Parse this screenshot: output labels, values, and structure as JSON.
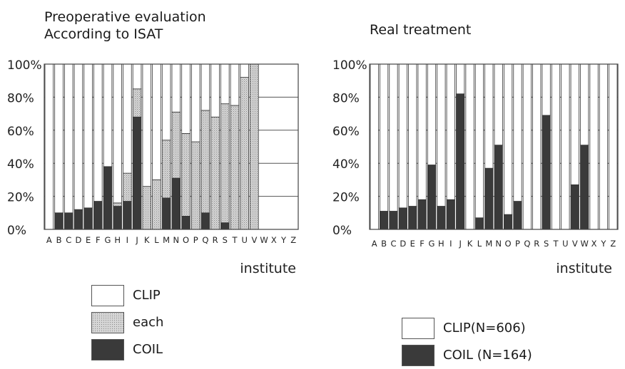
{
  "charts_header": {
    "left_title_line1": "Preoperative evaluation",
    "left_title_line2": "According to ISAT",
    "right_title": "Real treatment"
  },
  "legend_left": [
    {
      "label": "CLIP",
      "color": "#ffffff",
      "pattern": "plain"
    },
    {
      "label": "each",
      "color": "#c9c9c9",
      "pattern": "dotted"
    },
    {
      "label": "COIL",
      "color": "#3a3a3a",
      "pattern": "solid"
    }
  ],
  "legend_right": [
    {
      "label": "CLIP(N=606)",
      "color": "#ffffff",
      "pattern": "plain"
    },
    {
      "label": "COIL (N=164)",
      "color": "#3a3a3a",
      "pattern": "solid"
    }
  ],
  "chart_data": [
    {
      "type": "bar",
      "stacked": true,
      "title": "Preoperative evaluation According to ISAT",
      "xlabel": "institute",
      "ylabel": "",
      "ylim": [
        0,
        100
      ],
      "yticks": [
        "0%",
        "20%",
        "40%",
        "60%",
        "80%",
        "100%"
      ],
      "categories": [
        "A",
        "B",
        "C",
        "D",
        "E",
        "F",
        "G",
        "H",
        "I",
        "J",
        "K",
        "L",
        "M",
        "N",
        "O",
        "P",
        "Q",
        "R",
        "S",
        "T",
        "U",
        "V",
        "W",
        "X",
        "Y",
        "Z"
      ],
      "series": [
        {
          "name": "COIL",
          "color": "#3a3a3a",
          "values": [
            0,
            10,
            10,
            12,
            13,
            17,
            38,
            14,
            17,
            68,
            0,
            0,
            19,
            31,
            8,
            0,
            10,
            0,
            4,
            0,
            0,
            0,
            0,
            0,
            0,
            0
          ]
        },
        {
          "name": "each",
          "color": "#c9c9c9",
          "values": [
            0,
            0,
            0,
            0,
            0,
            0,
            0,
            2,
            17,
            17,
            26,
            30,
            35,
            40,
            50,
            53,
            62,
            68,
            72,
            75,
            92,
            100,
            0,
            0,
            0,
            0
          ]
        },
        {
          "name": "CLIP",
          "color": "#ffffff",
          "values": [
            100,
            90,
            90,
            88,
            87,
            83,
            62,
            84,
            66,
            15,
            74,
            70,
            46,
            29,
            42,
            47,
            28,
            32,
            24,
            25,
            8,
            0,
            0,
            0,
            0,
            0
          ]
        }
      ]
    },
    {
      "type": "bar",
      "stacked": true,
      "title": "Real treatment",
      "xlabel": "institute",
      "ylabel": "",
      "ylim": [
        0,
        100
      ],
      "yticks": [
        "0%",
        "20%",
        "40%",
        "60%",
        "80%",
        "100%"
      ],
      "categories": [
        "A",
        "B",
        "C",
        "D",
        "E",
        "F",
        "G",
        "H",
        "I",
        "J",
        "K",
        "L",
        "M",
        "N",
        "O",
        "P",
        "Q",
        "R",
        "S",
        "T",
        "U",
        "V",
        "W",
        "X",
        "Y",
        "Z"
      ],
      "series": [
        {
          "name": "COIL",
          "color": "#3a3a3a",
          "values": [
            0,
            11,
            11,
            13,
            14,
            18,
            39,
            14,
            18,
            82,
            0,
            7,
            37,
            51,
            9,
            17,
            0,
            0,
            69,
            0,
            0,
            27,
            51,
            0,
            0,
            0
          ]
        },
        {
          "name": "CLIP",
          "color": "#ffffff",
          "values": [
            100,
            89,
            89,
            87,
            86,
            82,
            61,
            86,
            82,
            18,
            100,
            93,
            63,
            49,
            91,
            83,
            100,
            100,
            31,
            100,
            100,
            73,
            49,
            100,
            100,
            100
          ]
        }
      ]
    }
  ]
}
